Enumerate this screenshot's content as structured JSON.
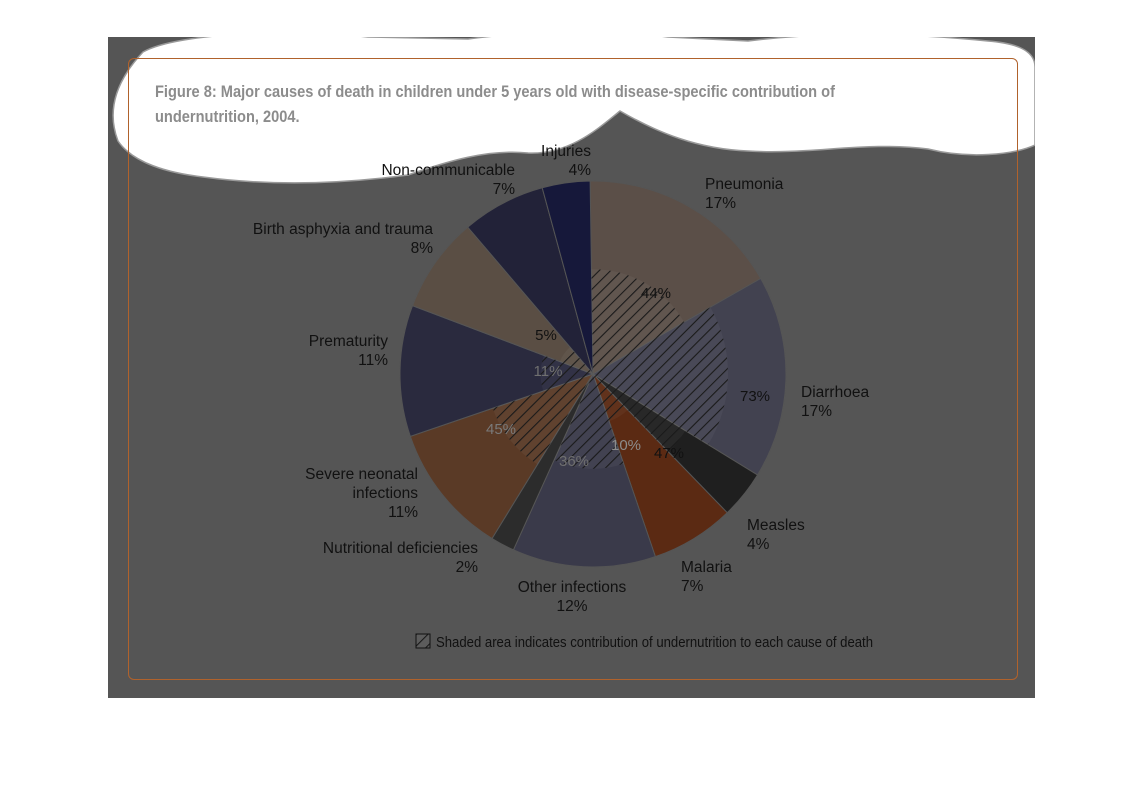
{
  "title": "Figure 8: Major causes of death in children under 5 years old with disease-specific contribution of undernutrition, 2004.",
  "chart_data": {
    "type": "pie",
    "unit": "%",
    "slices": [
      {
        "name": "Pneumonia",
        "value": 17,
        "undernutrition": 44,
        "color": "#5b4f48"
      },
      {
        "name": "Diarrhoea",
        "value": 17,
        "undernutrition": 73,
        "color": "#424250"
      },
      {
        "name": "Measles",
        "value": 4,
        "undernutrition": 47,
        "color": "#1f1f1f"
      },
      {
        "name": "Malaria",
        "value": 7,
        "undernutrition": 10,
        "color": "#5b2a13"
      },
      {
        "name": "Other infections",
        "value": 12,
        "undernutrition": 36,
        "color": "#3a3a4a"
      },
      {
        "name": "Nutritional deficiencies",
        "value": 2,
        "undernutrition": null,
        "color": "#2c2c2c"
      },
      {
        "name": "Severe neonatal infections",
        "value": 11,
        "undernutrition": 45,
        "color": "#5a3a26"
      },
      {
        "name": "Prematurity",
        "value": 11,
        "undernutrition": 11,
        "color": "#2a2a3e"
      },
      {
        "name": "Birth asphyxia and trauma",
        "value": 8,
        "undernutrition": 5,
        "color": "#5a4e44"
      },
      {
        "name": "Non-communicable",
        "value": 7,
        "undernutrition": null,
        "color": "#222238"
      },
      {
        "name": "Injuries",
        "value": 4,
        "undernutrition": null,
        "color": "#16183a"
      }
    ],
    "legend": "Shaded area indicates contribution of undernutrition to each cause of death",
    "legend_position": "bottom-right"
  }
}
